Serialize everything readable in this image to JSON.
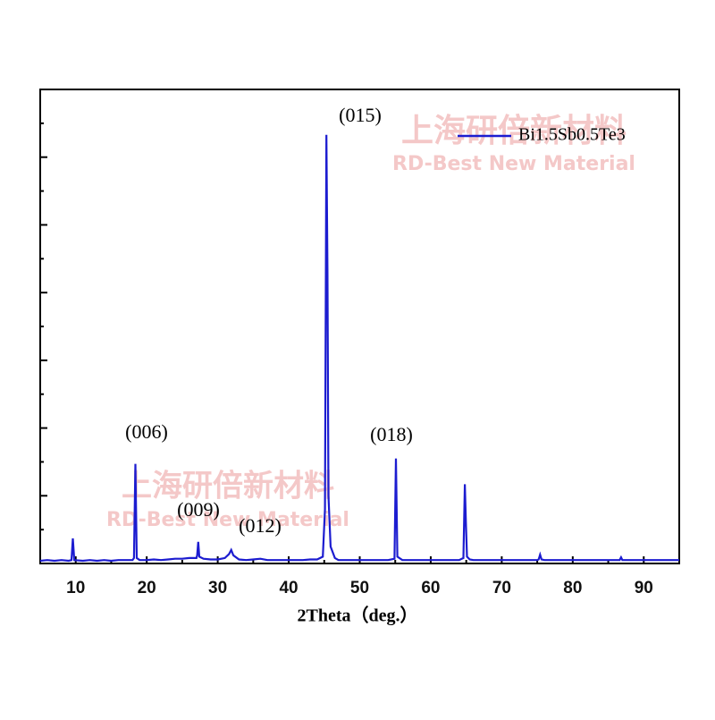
{
  "chart_data": {
    "type": "line",
    "xlabel": "2Theta（deg.）",
    "xlim": [
      5,
      95
    ],
    "xticks": [
      10,
      20,
      30,
      40,
      50,
      60,
      70,
      80,
      90
    ],
    "ylim": [
      0,
      7
    ],
    "yticks": [
      0,
      1,
      2,
      3,
      4,
      5,
      6,
      7
    ],
    "ytick_labels": false,
    "legend": "top-right",
    "annotations": [
      "(006)",
      "(009)",
      "(012)",
      "(015)",
      "(018)"
    ],
    "watermark": [
      "上海研倍新材料",
      "RD-Best New Material"
    ],
    "series": [
      {
        "name": "Bi1.5Sb0.5Te3",
        "color": "#1c1cd0",
        "x": [
          5,
          6,
          7,
          8,
          9,
          9.4,
          9.6,
          9.8,
          11,
          12,
          13,
          14,
          15,
          16,
          17,
          18,
          18.2,
          18.4,
          18.6,
          19,
          20,
          21,
          22,
          23,
          24,
          25,
          26,
          27,
          27.1,
          27.25,
          27.4,
          28,
          29,
          30,
          31,
          31.6,
          31.9,
          32.2,
          33,
          34,
          35,
          36,
          37,
          38,
          39,
          40,
          41,
          42,
          43,
          44,
          44.8,
          45.1,
          45.3,
          45.45,
          45.6,
          45.9,
          46.5,
          47,
          48,
          49,
          50,
          51,
          52,
          53,
          54,
          54.9,
          55.1,
          55.3,
          56,
          57,
          58,
          59,
          60,
          61,
          62,
          63,
          64,
          64.6,
          64.8,
          64.95,
          65.1,
          65.5,
          66,
          67,
          68,
          69,
          70,
          71,
          72,
          73,
          74,
          75,
          75.2,
          75.4,
          75.6,
          76,
          77,
          78,
          79,
          80,
          81,
          82,
          83,
          84,
          85,
          86,
          86.6,
          86.8,
          87,
          88,
          89,
          90,
          91,
          92,
          93,
          94,
          95
        ],
        "values": [
          0.04,
          0.05,
          0.04,
          0.05,
          0.04,
          0.05,
          0.37,
          0.05,
          0.04,
          0.05,
          0.04,
          0.05,
          0.04,
          0.05,
          0.05,
          0.05,
          0.08,
          1.47,
          0.08,
          0.05,
          0.05,
          0.06,
          0.05,
          0.06,
          0.07,
          0.07,
          0.08,
          0.08,
          0.12,
          0.32,
          0.1,
          0.07,
          0.06,
          0.06,
          0.08,
          0.14,
          0.2,
          0.12,
          0.06,
          0.05,
          0.06,
          0.07,
          0.05,
          0.05,
          0.05,
          0.05,
          0.05,
          0.05,
          0.06,
          0.06,
          0.1,
          0.8,
          6.33,
          4.3,
          1.0,
          0.25,
          0.08,
          0.05,
          0.05,
          0.05,
          0.05,
          0.05,
          0.05,
          0.05,
          0.05,
          0.07,
          1.55,
          0.1,
          0.05,
          0.05,
          0.05,
          0.05,
          0.05,
          0.05,
          0.05,
          0.05,
          0.05,
          0.08,
          1.17,
          0.6,
          0.1,
          0.06,
          0.05,
          0.05,
          0.05,
          0.05,
          0.05,
          0.05,
          0.05,
          0.05,
          0.05,
          0.05,
          0.06,
          0.13,
          0.06,
          0.05,
          0.05,
          0.05,
          0.05,
          0.05,
          0.05,
          0.05,
          0.05,
          0.05,
          0.05,
          0.05,
          0.05,
          0.09,
          0.05,
          0.05,
          0.05,
          0.05,
          0.05,
          0.05,
          0.05,
          0.05,
          0.05
        ]
      }
    ]
  }
}
